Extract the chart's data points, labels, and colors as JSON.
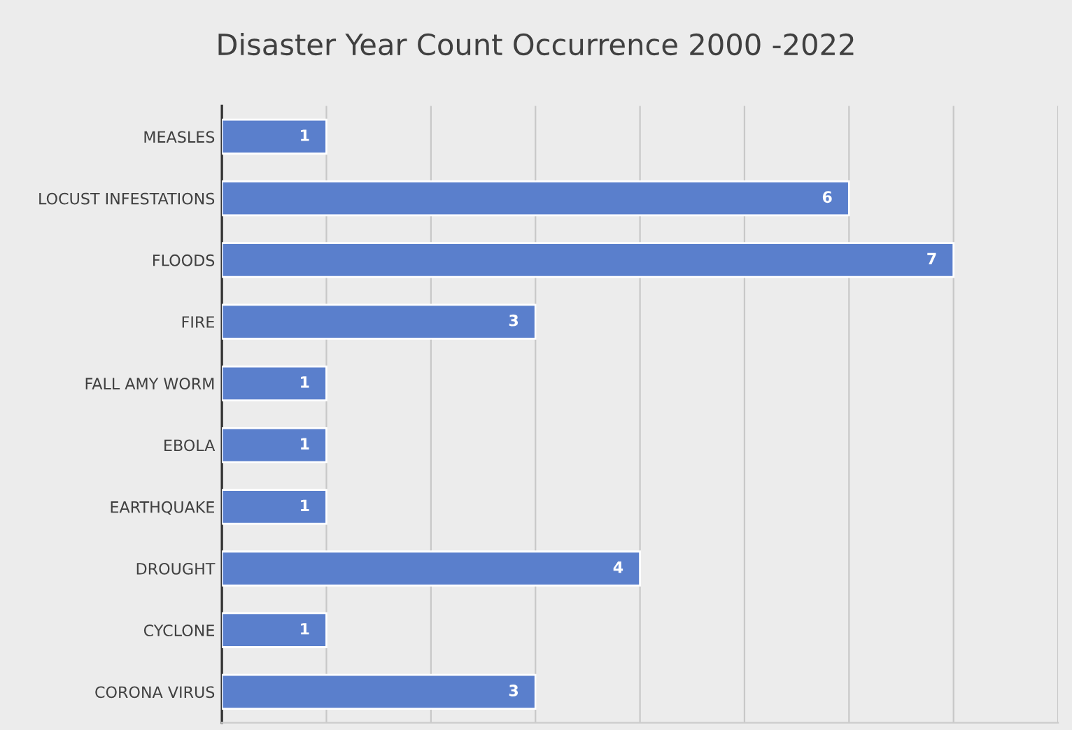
{
  "chart_data": {
    "type": "bar",
    "orientation": "horizontal",
    "title": "Disaster Year Count Occurrence 2000 -2022",
    "categories": [
      "MEASLES",
      "LOCUST INFESTATIONS",
      "FLOODS",
      "FIRE",
      "FALL AMY WORM",
      "EBOLA",
      "EARTHQUAKE",
      "DROUGHT",
      "CYCLONE",
      "CORONA VIRUS"
    ],
    "values": [
      1,
      6,
      7,
      3,
      1,
      1,
      1,
      4,
      1,
      3
    ],
    "color": "#5a7fcc",
    "xlim": [
      0,
      8
    ],
    "xticks": [
      {
        "value": 0,
        "label": null
      },
      {
        "value": 1,
        "label": null
      },
      {
        "value": 2,
        "label": null
      },
      {
        "value": 3,
        "label": null
      },
      {
        "value": 4,
        "label": null
      },
      {
        "value": 5,
        "label": null
      },
      {
        "value": 6,
        "label": null
      },
      {
        "value": 7,
        "label": null
      },
      {
        "value": 8,
        "label": null
      }
    ],
    "tick_labels": "y",
    "grid": "x",
    "data_labels": true,
    "legend": false
  }
}
